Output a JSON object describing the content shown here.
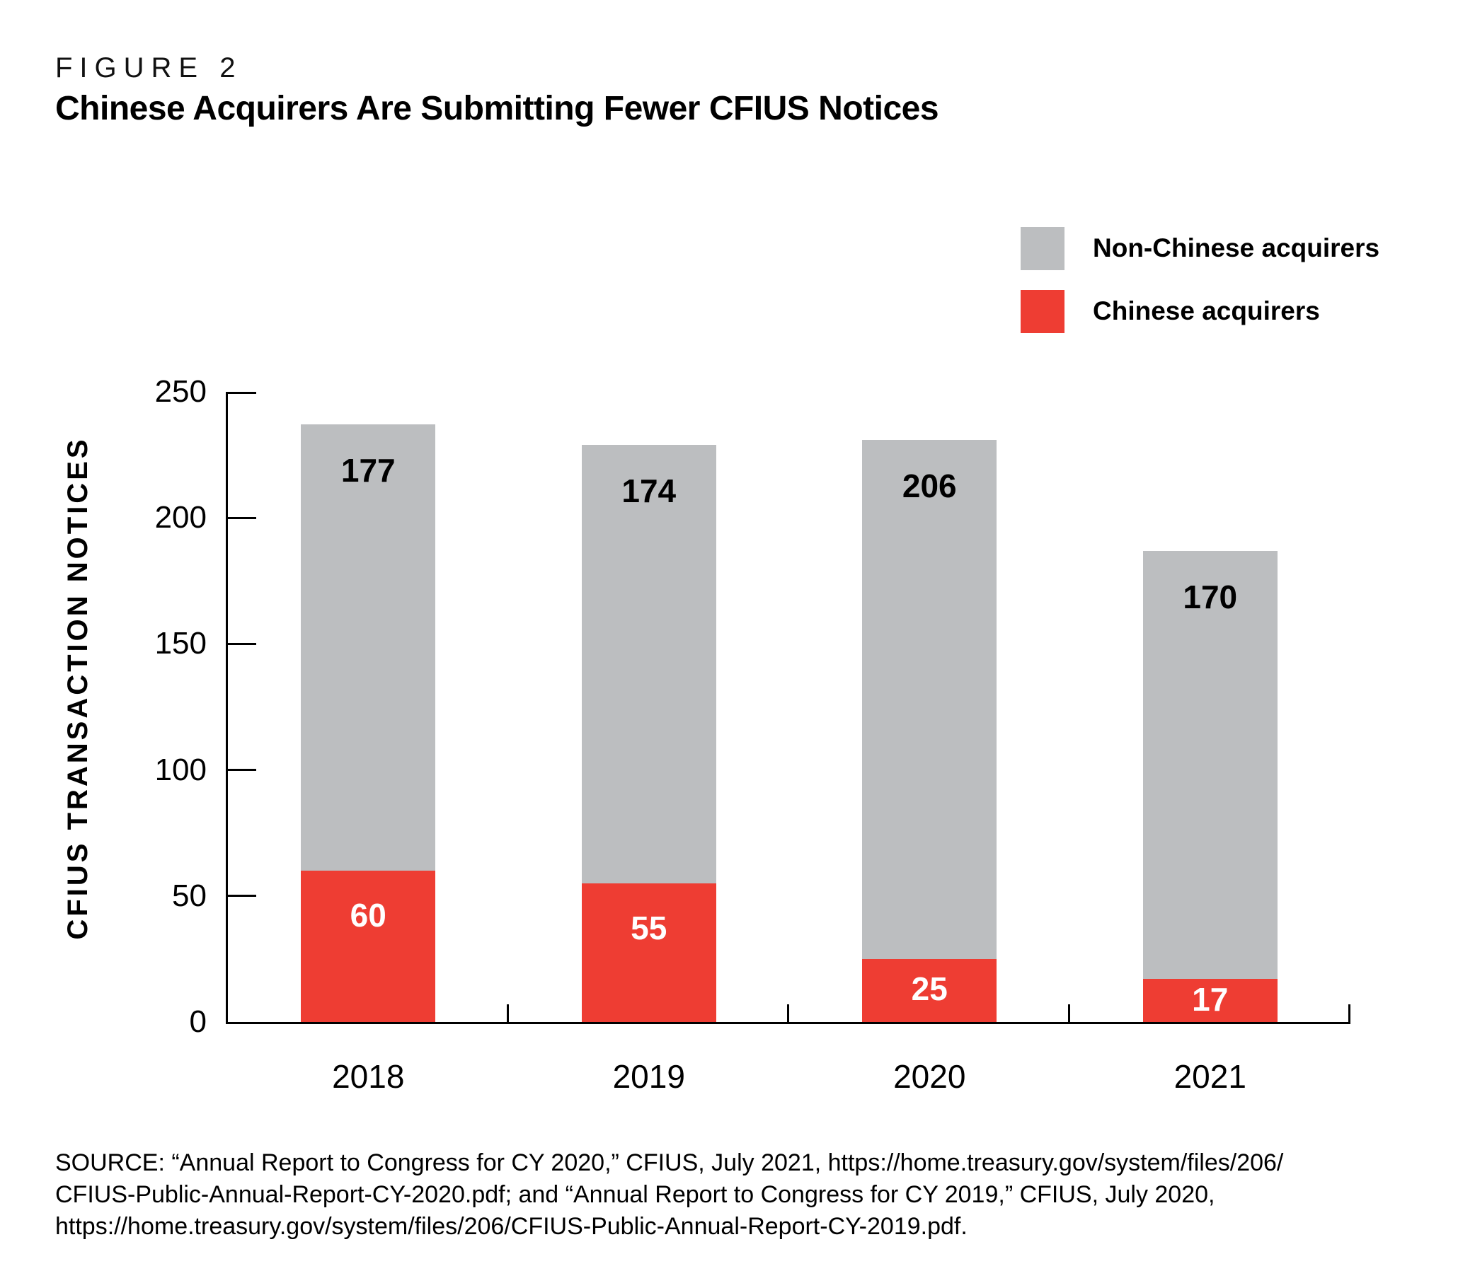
{
  "figure": {
    "label": "FIGURE 2",
    "title": "Chinese Acquirers Are Submitting Fewer CFIUS Notices"
  },
  "legend": {
    "items": [
      {
        "label": "Non-Chinese acquirers",
        "color": "#bcbec0"
      },
      {
        "label": "Chinese acquirers",
        "color": "#ee3d33"
      }
    ]
  },
  "chart_data": {
    "type": "bar",
    "stacked": true,
    "title": "Chinese Acquirers Are Submitting Fewer CFIUS Notices",
    "categories": [
      "2018",
      "2019",
      "2020",
      "2021"
    ],
    "series": [
      {
        "name": "Chinese acquirers",
        "color": "#ee3d33",
        "label_color": "#ffffff",
        "values": [
          60,
          55,
          25,
          17
        ]
      },
      {
        "name": "Non-Chinese acquirers",
        "color": "#bcbec0",
        "label_color": "#000000",
        "values": [
          177,
          174,
          206,
          170
        ]
      }
    ],
    "xlabel": "",
    "ylabel": "CFIUS TRANSACTION NOTICES",
    "ylim": [
      0,
      250
    ],
    "yticks": [
      0,
      50,
      100,
      150,
      200,
      250
    ],
    "grid": false,
    "legend_position": "top-right",
    "bar_value_labels": true,
    "axis_color": "#000000"
  },
  "source": {
    "lines": [
      "SOURCE: “Annual Report to Congress for CY 2020,” CFIUS, July 2021, https://home.treasury.gov/system/files/206/",
      "CFIUS-Public-Annual-Report-CY-2020.pdf; and “Annual Report to Congress for CY 2019,” CFIUS, July 2020,",
      "https://home.treasury.gov/system/files/206/CFIUS-Public-Annual-Report-CY-2019.pdf."
    ]
  }
}
